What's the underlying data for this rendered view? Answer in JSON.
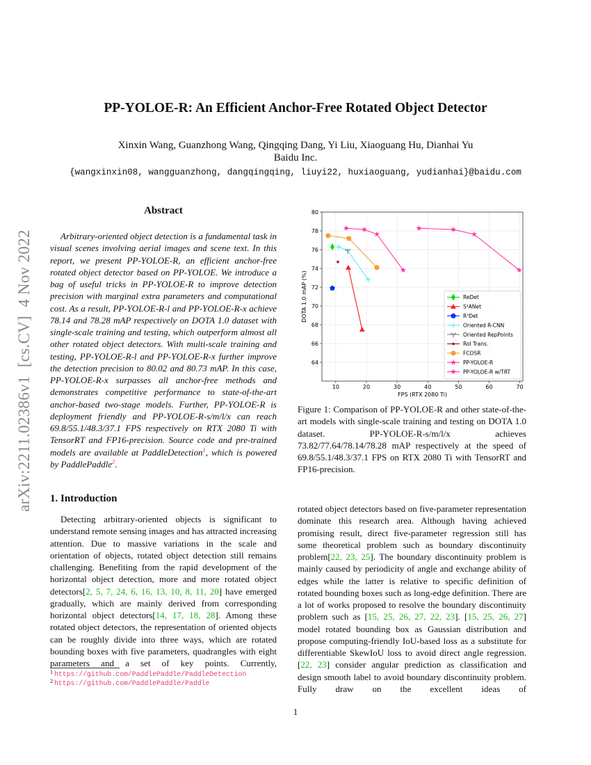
{
  "sidebar": "arXiv:2211.02386v1  [cs.CV]  4 Nov 2022",
  "header": {
    "title": "PP-YOLOE-R: An Efficient Anchor-Free Rotated Object Detector",
    "authors": "Xinxin Wang, Guanzhong Wang, Qingqing Dang, Yi Liu, Xiaoguang Hu, Dianhai Yu",
    "affiliation": "Baidu Inc.",
    "emails": "{wangxinxin08, wangguanzhong, dangqingqing, liuyi22, huxiaoguang, yudianhai}@baidu.com"
  },
  "abstract": {
    "heading": "Abstract",
    "body": [
      "Arbitrary-oriented object detection is a fundamental task in visual scenes involving aerial images and scene text. In this report, we present PP-YOLOE-R, an efficient anchor-free rotated object detector based on PP-YOLOE. We introduce a bag of useful tricks in PP-YOLOE-R to improve detection precision with marginal extra parameters and computational cost. As a result, PP-YOLOE-R-l and PP-YOLOE-R-x achieve 78.14 and 78.28 mAP respectively on DOTA 1.0 dataset with single-scale training and testing, which outperform almost all other rotated object detectors. With multi-scale training and testing, PP-YOLOE-R-l and PP-YOLOE-R-x further improve the detection precision to 80.02 and 80.73 mAP. In this case, PP-YOLOE-R-x surpasses all anchor-free methods and demonstrates competitive performance to state-of-the-art anchor-based two-stage models. Further, PP-YOLOE-R is deployment friendly and PP-YOLOE-R-s/m/l/x can reach 69.8/55.1/48.3/37.1 FPS respectively on RTX 2080 Ti with TensorRT and FP16-precision. Source code and pre-trained models are available at PaddleDetection",
      ", which is powered by PaddlePaddle",
      "."
    ],
    "marks": [
      "1",
      "2"
    ]
  },
  "introduction": {
    "heading": "1. Introduction",
    "left_runs": [
      "Detecting arbitrary-oriented objects is significant to understand remote sensing images and has attracted increasing attention. Due to massive variations in the scale and orientation of objects, rotated object detection still remains challenging. Benefiting from the rapid development of the horizontal object detection, more and more rotated object detectors[",
      "2, 5, 7, 24, 6, 16, 13, 10, 8, 11, 20",
      "] have emerged gradually, which are mainly derived from corresponding horizontal object detectors[",
      "14, 17, 18, 28",
      "]. Among these rotated object detectors, the representation of oriented objects can be roughly divide into three ways, which are rotated bounding boxes with five parameters, quadrangles with eight parameters and a set of key points. Currently,"
    ],
    "right_runs": [
      "rotated object detectors based on five-parameter representation dominate this research area. Although having achieved promising result, direct five-parameter regression still has some theoretical problem such as boundary discontinuity problem[",
      "22, 23, 25",
      "]. The boundary discontinuity problem is mainly caused by periodicity of angle and exchange ability of edges while the latter is relative to specific definition of rotated bounding boxes such as long-edge definition. There are a lot of works proposed to resolve the boundary discontinuity problem such as [",
      "15, 25, 26, 27, 22, 23",
      "]. [",
      "15, 25, 26, 27",
      "] model rotated bounding box as Gaussian distribution and propose computing-friendly IoU-based loss as a substitute for differentiable SkewIoU loss to avoid direct angle regression. [",
      "22, 23",
      "] consider angular prediction as classification and design smooth label to avoid boundary discontinuity problem. Fully draw on the excellent ideas of"
    ]
  },
  "figure": {
    "caption": "Figure 1: Comparison of PP-YOLOE-R and other state-of-the-art models with single-scale training and testing on DOTA 1.0 dataset. PP-YOLOE-R-s/m/l/x achieves 73.82/77.64/78.14/78.28 mAP respectively at the speed of 69.8/55.1/48.3/37.1 FPS on RTX 2080 Ti with TensorRT and FP16-precision."
  },
  "chart_data": {
    "type": "line",
    "x_label": "FPS (RTX 2080 Ti)",
    "y_label": "DOTA 1.0 mAP (%)",
    "xlim": [
      5.5,
      71
    ],
    "ylim": [
      62,
      80
    ],
    "xticks": [
      10,
      20,
      30,
      40,
      50,
      60,
      70
    ],
    "yticks": [
      64,
      66,
      68,
      70,
      72,
      74,
      76,
      78,
      80
    ],
    "grid": true,
    "legend": "lower right",
    "series": [
      {
        "name": "ReDet",
        "color": "#00dd00",
        "marker": "diamond",
        "x": [
          8.9
        ],
        "values": [
          76.3
        ]
      },
      {
        "name": "S²ANet",
        "color": "#ff1a1a",
        "marker": "triangle",
        "x": [
          14.1,
          18.6
        ],
        "values": [
          74.1,
          67.5
        ]
      },
      {
        "name": "R³Det",
        "color": "#0a2cff",
        "marker": "pentagon",
        "x": [
          8.9
        ],
        "values": [
          71.9
        ]
      },
      {
        "name": "Oriented R-CNN",
        "color": "#66e6ff",
        "marker": "plus",
        "x": [
          10.9,
          13.9,
          20.6
        ],
        "values": [
          76.3,
          75.9,
          72.8
        ]
      },
      {
        "name": "Oriented RepPoints",
        "color": "#777777",
        "marker": "tri_down",
        "x": [
          13.9
        ],
        "values": [
          75.9
        ]
      },
      {
        "name": "RoI Trans.",
        "color": "#8b1a3a",
        "marker": "dot",
        "x": [
          10.7
        ],
        "values": [
          74.7
        ]
      },
      {
        "name": "FCOSR",
        "color": "#f5a030",
        "marker": "circle",
        "x": [
          7.5,
          14.3,
          23.4
        ],
        "values": [
          77.5,
          77.2,
          74.1
        ]
      },
      {
        "name": "PP-YOLOE-R",
        "color": "#ff3aa8",
        "marker": "star",
        "x": [
          13.4,
          19.3,
          23.4,
          32.0
        ],
        "values": [
          78.28,
          78.14,
          77.64,
          73.82
        ]
      },
      {
        "name": "PP-YOLOE-R w/TRT",
        "color": "#ff3aa8",
        "marker": "star",
        "x": [
          37.1,
          48.3,
          55.1,
          69.8
        ],
        "values": [
          78.28,
          78.14,
          77.64,
          73.82
        ]
      }
    ]
  },
  "footnotes": [
    {
      "mark": "1",
      "url": "https://github.com/PaddlePaddle/PaddleDetection"
    },
    {
      "mark": "2",
      "url": "https://github.com/PaddlePaddle/Paddle"
    }
  ],
  "page_number": "1"
}
